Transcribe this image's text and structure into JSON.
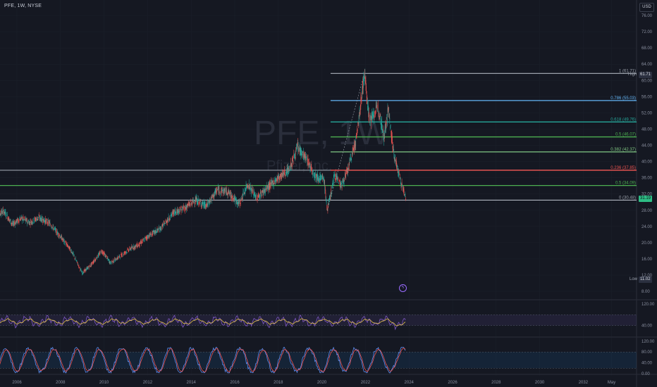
{
  "header": {
    "symbol": "PFE, 1W, NYSE",
    "currency": "USD",
    "watermark": "PFE, 1W",
    "watermark_sub": "Pfizer, Inc."
  },
  "tags": {
    "current": "31.19",
    "high_label": "High",
    "high_value": "61.71",
    "low_label": "Low",
    "low_value": "11.02"
  },
  "icons": {
    "lightning": "lightning-icon"
  },
  "colors": {
    "background": "#151822",
    "candle_up": "#26a69a",
    "candle_down": "#ef5350",
    "indicator_line": "#7e57c2",
    "indicator_signal": "#e6c34a",
    "stoch_k": "#5b8def",
    "stoch_d": "#ef5350"
  },
  "chart_data": [
    {
      "type": "candlestick",
      "title": "PFE, 1W, NYSE",
      "x_ticks": [
        "2006",
        "2008",
        "2010",
        "2012",
        "2014",
        "2016",
        "2018",
        "2020",
        "2022",
        "2024",
        "2026",
        "2028",
        "2030",
        "2032",
        "May"
      ],
      "y_ticks": [
        "76.00",
        "72.00",
        "68.00",
        "64.00",
        "60.00",
        "56.00",
        "52.00",
        "48.00",
        "44.00",
        "40.00",
        "36.00",
        "32.00",
        "28.00",
        "24.00",
        "20.00",
        "16.00",
        "12.00",
        "8.00"
      ],
      "ylim": [
        8,
        79
      ],
      "price_path": [
        [
          2005.0,
          26.5
        ],
        [
          2005.4,
          27.8
        ],
        [
          2005.8,
          24.5
        ],
        [
          2006.2,
          26.0
        ],
        [
          2006.6,
          25.0
        ],
        [
          2007.0,
          26.2
        ],
        [
          2007.5,
          24.8
        ],
        [
          2008.0,
          21.5
        ],
        [
          2008.5,
          18.0
        ],
        [
          2009.0,
          12.5
        ],
        [
          2009.4,
          14.5
        ],
        [
          2009.9,
          18.0
        ],
        [
          2010.3,
          15.0
        ],
        [
          2010.7,
          16.5
        ],
        [
          2011.2,
          18.5
        ],
        [
          2011.6,
          19.5
        ],
        [
          2012.0,
          21.5
        ],
        [
          2012.6,
          23.5
        ],
        [
          2013.2,
          27.5
        ],
        [
          2013.7,
          28.5
        ],
        [
          2014.2,
          30.5
        ],
        [
          2014.7,
          29.0
        ],
        [
          2015.2,
          33.0
        ],
        [
          2015.7,
          32.5
        ],
        [
          2016.2,
          29.5
        ],
        [
          2016.6,
          34.5
        ],
        [
          2017.0,
          31.0
        ],
        [
          2017.5,
          33.5
        ],
        [
          2018.0,
          36.0
        ],
        [
          2018.5,
          38.0
        ],
        [
          2018.9,
          43.5
        ],
        [
          2019.3,
          40.5
        ],
        [
          2019.7,
          36.5
        ],
        [
          2020.1,
          35.5
        ],
        [
          2020.25,
          28.0
        ],
        [
          2020.6,
          37.0
        ],
        [
          2020.9,
          34.0
        ],
        [
          2021.2,
          38.0
        ],
        [
          2021.6,
          46.0
        ],
        [
          2021.95,
          61.7
        ],
        [
          2022.2,
          50.0
        ],
        [
          2022.6,
          53.5
        ],
        [
          2022.85,
          46.0
        ],
        [
          2023.05,
          53.0
        ],
        [
          2023.3,
          42.0
        ],
        [
          2023.6,
          35.5
        ],
        [
          2023.85,
          31.2
        ]
      ],
      "fibonacci": [
        {
          "ratio": "1",
          "price": 61.71,
          "label": "1 (61.71)"
        },
        {
          "ratio": "0.786",
          "price": 55.03,
          "label": "0.786 (55.03)"
        },
        {
          "ratio": "0.618",
          "price": 49.76,
          "label": "0.618 (49.76)"
        },
        {
          "ratio": "0.5",
          "price": 46.07,
          "label": "0.5 (46.07)"
        },
        {
          "ratio": "0.382",
          "price": 42.37,
          "label": "0.382 (42.37)"
        },
        {
          "ratio": "0.236",
          "price": 37.85,
          "label": "0.236 (37.85)"
        },
        {
          "ratio": "0.5",
          "price": 34.09,
          "label": "0.5 (34.09)"
        },
        {
          "ratio": "0",
          "price": 30.48,
          "label": "0 (30.48)"
        }
      ],
      "last_price": 31.19,
      "high": 61.71,
      "low": 11.02
    },
    {
      "type": "line",
      "ylim": [
        0,
        130
      ],
      "y_ticks": [
        "120.00",
        "40.00"
      ],
      "band": [
        40,
        80
      ]
    },
    {
      "type": "line",
      "ylim": [
        0,
        130
      ],
      "y_ticks": [
        "120.00",
        "80.00",
        "40.00",
        "0.00"
      ],
      "band": [
        20,
        80
      ]
    }
  ]
}
